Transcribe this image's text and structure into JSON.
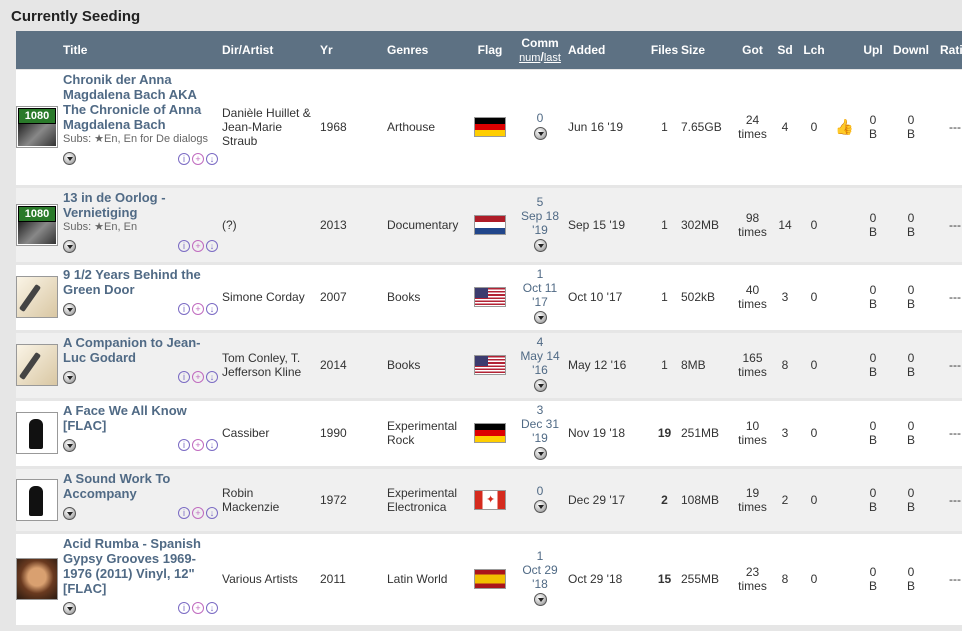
{
  "section_title": "Currently Seeding",
  "headers": {
    "title": "Title",
    "artist": "Dir/Artist",
    "year": "Yr",
    "genres": "Genres",
    "flag": "Flag",
    "comm": "Comm",
    "comm_num": "num",
    "comm_sep": "/",
    "comm_last": "last",
    "added": "Added",
    "files": "Files",
    "size": "Size",
    "got": "Got",
    "sd": "Sd",
    "lch": "Lch",
    "upl": "Upl",
    "downl": "Downl",
    "ratio": "Ratio"
  },
  "rows": [
    {
      "cover": "1080",
      "title": "Chronik der Anna Magdalena Bach AKA The Chronicle of Anna Magdalena Bach",
      "subs": "Subs: ★En, En for De dialogs",
      "artist": "Danièle Huillet & Jean-Marie Straub",
      "year": "1968",
      "genres": "Arthouse",
      "flag": "de",
      "comm_num": "0",
      "comm_date": "",
      "comm_year": "",
      "added": "Jun 16 '19",
      "files": "1",
      "files_link": false,
      "size": "7.65GB",
      "got": "24",
      "got_unit": "times",
      "sd": "4",
      "lch": "0",
      "thumb": true,
      "upl": "0",
      "upl_unit": "B",
      "downl": "0",
      "downl_unit": "B",
      "ratio": "---"
    },
    {
      "cover": "1080",
      "title": "13 in de Oorlog - Vernietiging",
      "subs": "Subs: ★En, En",
      "artist": "(?)",
      "year": "2013",
      "genres": "Documentary",
      "flag": "nl",
      "comm_num": "5",
      "comm_date": "Sep 18",
      "comm_year": "'19",
      "added": "Sep 15 '19",
      "files": "1",
      "files_link": false,
      "size": "302MB",
      "got": "98",
      "got_unit": "times",
      "sd": "14",
      "lch": "0",
      "thumb": false,
      "upl": "0",
      "upl_unit": "B",
      "downl": "0",
      "downl_unit": "B",
      "ratio": "---"
    },
    {
      "cover": "pen",
      "title": "9 1/2 Years Behind the Green Door",
      "subs": "",
      "artist": "Simone Corday",
      "year": "2007",
      "genres": "Books",
      "flag": "us",
      "comm_num": "1",
      "comm_date": "Oct 11",
      "comm_year": "'17",
      "added": "Oct 10 '17",
      "files": "1",
      "files_link": false,
      "size": "502kB",
      "got": "40",
      "got_unit": "times",
      "sd": "3",
      "lch": "0",
      "thumb": false,
      "upl": "0",
      "upl_unit": "B",
      "downl": "0",
      "downl_unit": "B",
      "ratio": "---"
    },
    {
      "cover": "pen",
      "title": "A Companion to Jean-Luc Godard",
      "subs": "",
      "artist": "Tom Conley, T. Jefferson Kline",
      "year": "2014",
      "genres": "Books",
      "flag": "us",
      "comm_num": "4",
      "comm_date": "May 14",
      "comm_year": "'16",
      "added": "May 12 '16",
      "files": "1",
      "files_link": false,
      "size": "8MB",
      "got": "165",
      "got_unit": "times",
      "sd": "8",
      "lch": "0",
      "thumb": false,
      "upl": "0",
      "upl_unit": "B",
      "downl": "0",
      "downl_unit": "B",
      "ratio": "---"
    },
    {
      "cover": "bw",
      "title": "A Face We All Know [FLAC]",
      "subs": "",
      "artist": "Cassiber",
      "year": "1990",
      "genres": "Experimental Rock",
      "flag": "de",
      "comm_num": "3",
      "comm_date": "Dec 31",
      "comm_year": "'19",
      "added": "Nov 19 '18",
      "files": "19",
      "files_link": true,
      "size": "251MB",
      "got": "10",
      "got_unit": "times",
      "sd": "3",
      "lch": "0",
      "thumb": false,
      "upl": "0",
      "upl_unit": "B",
      "downl": "0",
      "downl_unit": "B",
      "ratio": "---"
    },
    {
      "cover": "bw",
      "title": "A Sound Work To Accompany",
      "subs": "",
      "artist": "Robin Mackenzie",
      "year": "1972",
      "genres": "Experimental Electronica",
      "flag": "ca",
      "comm_num": "0",
      "comm_date": "",
      "comm_year": "",
      "added": "Dec 29 '17",
      "files": "2",
      "files_link": true,
      "size": "108MB",
      "got": "19",
      "got_unit": "times",
      "sd": "2",
      "lch": "0",
      "thumb": false,
      "upl": "0",
      "upl_unit": "B",
      "downl": "0",
      "downl_unit": "B",
      "ratio": "---"
    },
    {
      "cover": "face",
      "title": "Acid Rumba - Spanish Gypsy Grooves 1969-1976 (2011) Vinyl, 12\" [FLAC]",
      "subs": "",
      "artist": "Various Artists",
      "year": "2011",
      "genres": "Latin World",
      "flag": "es",
      "comm_num": "1",
      "comm_date": "Oct 29",
      "comm_year": "'18",
      "added": "Oct 29 '18",
      "files": "15",
      "files_link": true,
      "size": "255MB",
      "got": "23",
      "got_unit": "times",
      "sd": "8",
      "lch": "0",
      "thumb": false,
      "upl": "0",
      "upl_unit": "B",
      "downl": "0",
      "downl_unit": "B",
      "ratio": "---"
    }
  ]
}
